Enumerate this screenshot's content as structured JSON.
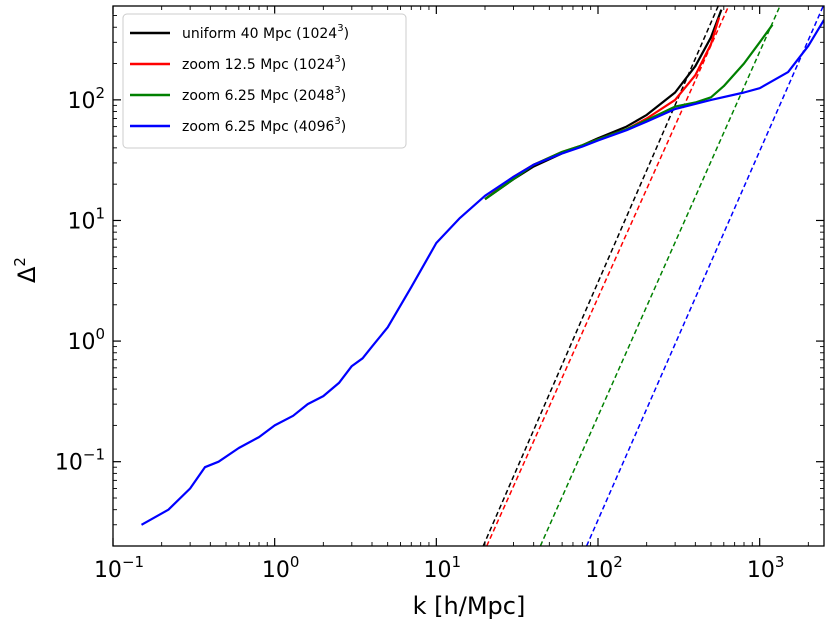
{
  "chart_data": {
    "type": "line",
    "xlabel": "k [h/Mpc]",
    "ylabel": "Δ",
    "ylabel_sup": "2",
    "xscale": "log",
    "yscale": "log",
    "xlim": [
      0.1,
      2500
    ],
    "ylim": [
      0.02,
      600
    ],
    "legend_position": "top-left",
    "x_ticks": [
      {
        "value": 0.1,
        "base": "10",
        "exp": "−1"
      },
      {
        "value": 1,
        "base": "10",
        "exp": "0"
      },
      {
        "value": 10,
        "base": "10",
        "exp": "1"
      },
      {
        "value": 100,
        "base": "10",
        "exp": "2"
      },
      {
        "value": 1000,
        "base": "10",
        "exp": "3"
      }
    ],
    "y_ticks": [
      {
        "value": 0.1,
        "base": "10",
        "exp": "−1"
      },
      {
        "value": 1,
        "base": "10",
        "exp": "0"
      },
      {
        "value": 10,
        "base": "10",
        "exp": "1"
      },
      {
        "value": 100,
        "base": "10",
        "exp": "2"
      }
    ],
    "series": [
      {
        "name": "uniform 40 Mpc",
        "res_base": "1024",
        "res_exp": "3",
        "color": "#000000",
        "x": [
          20,
          30,
          40,
          60,
          80,
          100,
          150,
          200,
          300,
          400,
          500,
          580
        ],
        "y": [
          15,
          22,
          28,
          36,
          42,
          48,
          60,
          75,
          115,
          190,
          330,
          560
        ]
      },
      {
        "name": "zoom 12.5 Mpc",
        "res_base": "1024",
        "res_exp": "3",
        "color": "#ff0000",
        "x": [
          20,
          30,
          40,
          60,
          80,
          100,
          150,
          200,
          300,
          400,
          500,
          560
        ],
        "y": [
          15,
          23,
          29,
          37,
          42,
          47,
          57,
          70,
          100,
          160,
          290,
          480
        ]
      },
      {
        "name": "zoom 6.25 Mpc",
        "res_base": "2048",
        "res_exp": "3",
        "color": "#008000",
        "x": [
          20,
          40,
          60,
          80,
          100,
          150,
          200,
          300,
          400,
          500,
          600,
          800,
          1000,
          1200
        ],
        "y": [
          15,
          29,
          37,
          42,
          47,
          57,
          68,
          88,
          95,
          105,
          130,
          200,
          300,
          420
        ]
      },
      {
        "name": "zoom 6.25 Mpc",
        "res_base": "4096",
        "res_exp": "3",
        "color": "#0000ff",
        "x": [
          0.15,
          0.22,
          0.3,
          0.37,
          0.45,
          0.6,
          0.8,
          1.0,
          1.3,
          1.6,
          2.0,
          2.5,
          3.0,
          3.5,
          4.0,
          5.0,
          7.0,
          10,
          14,
          20,
          30,
          40,
          60,
          80,
          100,
          150,
          200,
          300,
          500,
          800,
          1000,
          1500,
          2000,
          2500
        ],
        "y": [
          0.03,
          0.04,
          0.06,
          0.09,
          0.1,
          0.13,
          0.16,
          0.2,
          0.24,
          0.3,
          0.35,
          0.45,
          0.62,
          0.72,
          0.9,
          1.3,
          2.8,
          6.5,
          10.5,
          16,
          23,
          29,
          36,
          41,
          46,
          56,
          66,
          84,
          100,
          115,
          125,
          170,
          280,
          460
        ]
      }
    ],
    "shot_noise_lines": [
      {
        "color": "#000000",
        "x": [
          19.5,
          560
        ],
        "y": [
          0.02,
          620
        ]
      },
      {
        "color": "#ff0000",
        "x": [
          20.5,
          650
        ],
        "y": [
          0.02,
          620
        ]
      },
      {
        "color": "#008000",
        "x": [
          44,
          1350
        ],
        "y": [
          0.02,
          620
        ]
      },
      {
        "color": "#0000ff",
        "x": [
          85,
          2500
        ],
        "y": [
          0.02,
          620
        ]
      }
    ]
  }
}
